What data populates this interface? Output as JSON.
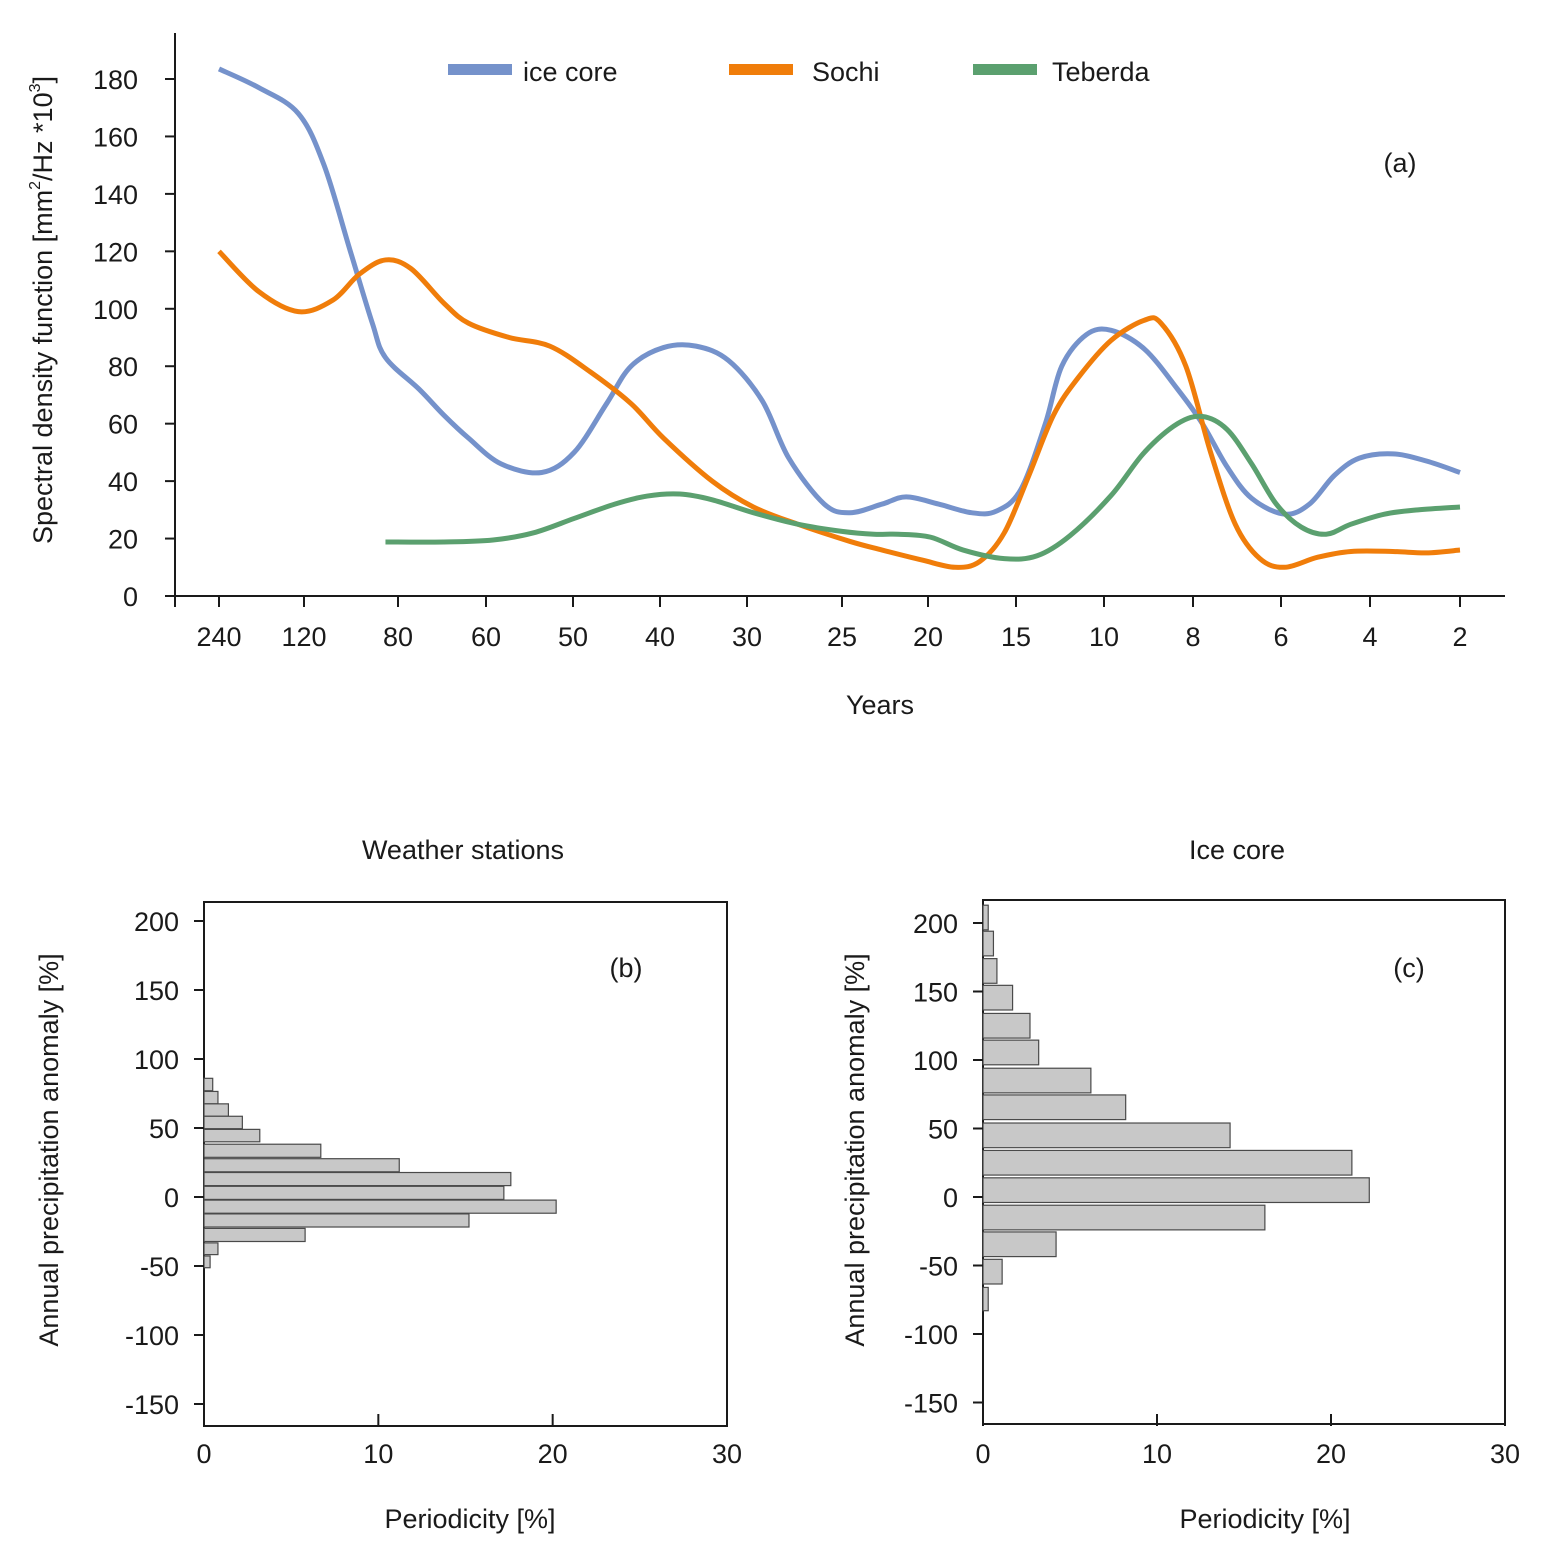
{
  "chart_data": [
    {
      "id": "a",
      "type": "line",
      "panel_label": "(a)",
      "title": "",
      "xlabel": "Years",
      "ylabel": "Spectral density function [mm²/Hz *10³]",
      "ylabel_parts": {
        "main": "Spectral density function [mm",
        "sup1": "2",
        "mid": "/Hz *10",
        "sup2": "3",
        "end": "]"
      },
      "x_scale": "categorical period axis (non-linear)",
      "x_tick_labels": [
        "240",
        "120",
        "80",
        "60",
        "50",
        "40",
        "30",
        "25",
        "20",
        "15",
        "10",
        "8",
        "6",
        "4",
        "2"
      ],
      "y_ticks": [
        0,
        20,
        40,
        60,
        80,
        100,
        120,
        140,
        160,
        180
      ],
      "ylim": [
        0,
        195
      ],
      "grid": false,
      "legend_position": "top-center",
      "series": [
        {
          "name": "ice core",
          "color": "#7592cb",
          "points": [
            [
              0,
              183.5
            ],
            [
              0.5,
              177
            ],
            [
              1,
              168
            ],
            [
              1.3,
              150
            ],
            [
              1.6,
              120
            ],
            [
              1.85,
              95
            ],
            [
              2,
              83
            ],
            [
              2.4,
              72
            ],
            [
              2.7,
              63
            ],
            [
              3,
              55
            ],
            [
              3.4,
              46
            ],
            [
              3.9,
              43
            ],
            [
              4.3,
              50
            ],
            [
              4.7,
              67
            ],
            [
              5,
              80
            ],
            [
              5.4,
              86.5
            ],
            [
              5.8,
              87
            ],
            [
              6.2,
              82
            ],
            [
              6.6,
              68
            ],
            [
              6.9,
              48
            ],
            [
              7.3,
              32
            ],
            [
              7.6,
              29
            ],
            [
              8,
              32
            ],
            [
              8.3,
              34.5
            ],
            [
              8.7,
              32
            ],
            [
              9.1,
              29
            ],
            [
              9.4,
              29.5
            ],
            [
              9.7,
              37
            ],
            [
              10,
              60
            ],
            [
              10.2,
              80
            ],
            [
              10.5,
              91
            ],
            [
              10.8,
              92.5
            ],
            [
              11.2,
              86
            ],
            [
              11.6,
              72
            ],
            [
              11.9,
              60
            ],
            [
              12.2,
              45
            ],
            [
              12.5,
              34
            ],
            [
              12.9,
              28.5
            ],
            [
              13.2,
              32
            ],
            [
              13.5,
              42
            ],
            [
              13.8,
              48
            ],
            [
              14.2,
              49.5
            ],
            [
              14.6,
              47
            ],
            [
              15,
              43
            ]
          ]
        },
        {
          "name": "Sochi",
          "color": "#f07d0a",
          "points": [
            [
              0,
              120
            ],
            [
              0.5,
              106
            ],
            [
              1,
              99
            ],
            [
              1.4,
              103
            ],
            [
              1.7,
              112
            ],
            [
              2,
              117
            ],
            [
              2.3,
              114
            ],
            [
              2.7,
              102
            ],
            [
              3,
              95
            ],
            [
              3.5,
              90
            ],
            [
              4,
              87
            ],
            [
              4.5,
              78
            ],
            [
              5,
              67
            ],
            [
              5.4,
              55
            ],
            [
              6,
              40
            ],
            [
              6.5,
              31
            ],
            [
              7,
              25
            ],
            [
              7.6,
              19
            ],
            [
              8,
              16
            ],
            [
              8.5,
              12.5
            ],
            [
              8.9,
              10
            ],
            [
              9.2,
              12
            ],
            [
              9.5,
              22
            ],
            [
              9.8,
              42
            ],
            [
              10.1,
              63
            ],
            [
              10.4,
              76
            ],
            [
              10.8,
              89
            ],
            [
              11.2,
              96
            ],
            [
              11.4,
              95
            ],
            [
              11.7,
              80
            ],
            [
              12,
              50
            ],
            [
              12.3,
              25
            ],
            [
              12.6,
              13
            ],
            [
              12.9,
              10
            ],
            [
              13.3,
              13.5
            ],
            [
              13.7,
              15.5
            ],
            [
              14.2,
              15.5
            ],
            [
              14.6,
              15
            ],
            [
              15,
              16
            ]
          ]
        },
        {
          "name": "Teberda",
          "color": "#5ba06f",
          "points": [
            [
              2,
              18.8
            ],
            [
              2.7,
              18.8
            ],
            [
              3.3,
              19.5
            ],
            [
              3.8,
              22
            ],
            [
              4.3,
              27
            ],
            [
              4.8,
              32
            ],
            [
              5.2,
              34.8
            ],
            [
              5.6,
              35.5
            ],
            [
              6,
              33.5
            ],
            [
              6.5,
              29
            ],
            [
              7,
              25
            ],
            [
              7.5,
              22.5
            ],
            [
              7.9,
              21.5
            ],
            [
              8.2,
              21.5
            ],
            [
              8.6,
              20.5
            ],
            [
              9,
              16
            ],
            [
              9.5,
              13
            ],
            [
              9.9,
              14
            ],
            [
              10.3,
              21
            ],
            [
              10.8,
              35
            ],
            [
              11.2,
              50
            ],
            [
              11.6,
              60
            ],
            [
              11.9,
              62.5
            ],
            [
              12.2,
              58
            ],
            [
              12.5,
              46
            ],
            [
              12.8,
              32
            ],
            [
              13.1,
              24
            ],
            [
              13.4,
              21.5
            ],
            [
              13.7,
              25
            ],
            [
              14.1,
              28.5
            ],
            [
              14.5,
              30
            ],
            [
              15,
              31
            ]
          ]
        }
      ]
    },
    {
      "id": "b",
      "type": "bar",
      "orientation": "horizontal",
      "title": "Weather stations",
      "panel_label": "(b)",
      "xlabel": "Periodicity [%]",
      "ylabel": "Annual precipitation anomaly [%]",
      "xlim": [
        0,
        30
      ],
      "ylim": [
        -160,
        210
      ],
      "x_ticks": [
        0,
        10,
        20,
        30
      ],
      "y_ticks": [
        200,
        150,
        100,
        50,
        0,
        -50,
        -100,
        -150
      ],
      "grid": false,
      "bins": [
        {
          "center": 81.5,
          "width": 9,
          "value": 0.5
        },
        {
          "center": 72,
          "width": 9,
          "value": 0.8
        },
        {
          "center": 63,
          "width": 9,
          "value": 1.4
        },
        {
          "center": 54,
          "width": 9,
          "value": 2.2
        },
        {
          "center": 44.5,
          "width": 9,
          "value": 3.2
        },
        {
          "center": 33.5,
          "width": 9.5,
          "value": 6.7
        },
        {
          "center": 23,
          "width": 9.5,
          "value": 11.2
        },
        {
          "center": 13,
          "width": 9.5,
          "value": 17.6
        },
        {
          "center": 3,
          "width": 9.5,
          "value": 17.2
        },
        {
          "center": -7,
          "width": 9.5,
          "value": 20.2
        },
        {
          "center": -17,
          "width": 9.5,
          "value": 15.2
        },
        {
          "center": -27.5,
          "width": 9.5,
          "value": 5.8
        },
        {
          "center": -37.5,
          "width": 8.5,
          "value": 0.8
        },
        {
          "center": -47,
          "width": 8.5,
          "value": 0.35
        }
      ]
    },
    {
      "id": "c",
      "type": "bar",
      "orientation": "horizontal",
      "title": "Ice core",
      "panel_label": "(c)",
      "xlabel": "Periodicity [%]",
      "ylabel": "Annual precipitation anomaly [%]",
      "xlim": [
        0,
        30
      ],
      "ylim": [
        -160,
        210
      ],
      "x_ticks": [
        0,
        10,
        20,
        30
      ],
      "y_ticks": [
        200,
        150,
        100,
        50,
        0,
        -50,
        -100,
        -150
      ],
      "grid": false,
      "bins": [
        {
          "center": 204,
          "width": 18,
          "value": 0.3
        },
        {
          "center": 185,
          "width": 18,
          "value": 0.6
        },
        {
          "center": 165,
          "width": 18,
          "value": 0.8
        },
        {
          "center": 145.5,
          "width": 18,
          "value": 1.7
        },
        {
          "center": 125,
          "width": 18,
          "value": 2.7
        },
        {
          "center": 105.5,
          "width": 18,
          "value": 3.2
        },
        {
          "center": 85,
          "width": 18,
          "value": 6.2
        },
        {
          "center": 65.5,
          "width": 18,
          "value": 8.2
        },
        {
          "center": 45,
          "width": 18,
          "value": 14.2
        },
        {
          "center": 25,
          "width": 18,
          "value": 21.2
        },
        {
          "center": 5,
          "width": 18,
          "value": 22.2
        },
        {
          "center": -15,
          "width": 18,
          "value": 16.2
        },
        {
          "center": -34.5,
          "width": 18,
          "value": 4.2
        },
        {
          "center": -54.5,
          "width": 18,
          "value": 1.1
        },
        {
          "center": -74.5,
          "width": 17,
          "value": 0.3
        }
      ]
    }
  ]
}
